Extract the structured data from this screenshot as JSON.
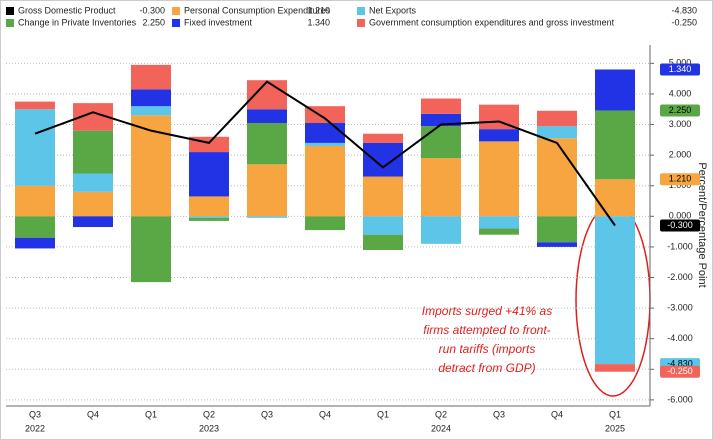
{
  "chart_data": {
    "type": "bar",
    "y_label": "Percent/Percentage Point",
    "categories": [
      "Q3",
      "Q4",
      "Q1",
      "Q2",
      "Q3",
      "Q4",
      "Q1",
      "Q2",
      "Q3",
      "Q4",
      "Q1"
    ],
    "years": [
      "2022",
      null,
      null,
      "2023",
      null,
      null,
      null,
      "2024",
      null,
      null,
      "2025"
    ],
    "series": [
      {
        "name": "Gross Domestic Product",
        "type": "line",
        "color": "#000000",
        "label_color": "#ffffff",
        "values": [
          2.7,
          3.4,
          2.8,
          2.4,
          4.4,
          3.2,
          1.6,
          3.0,
          3.1,
          2.4,
          -0.3
        ],
        "value_labels": [
          null,
          null,
          null,
          null,
          null,
          null,
          null,
          null,
          null,
          null,
          "-0.300"
        ]
      },
      {
        "name": "Personal Consumption Expenditures",
        "color": "#f7a541",
        "label_color": "#000000",
        "values": [
          1.0,
          0.8,
          3.3,
          0.65,
          1.7,
          2.3,
          1.3,
          1.9,
          2.45,
          2.55,
          1.21
        ],
        "value_labels": [
          null,
          null,
          null,
          null,
          null,
          null,
          null,
          null,
          null,
          null,
          "1.210"
        ]
      },
      {
        "name": "Net Exports",
        "color": "#5cc5e8",
        "label_color": "#000000",
        "values": [
          2.5,
          0.6,
          0.3,
          -0.05,
          -0.05,
          0.1,
          -0.6,
          -0.9,
          -0.4,
          0.4,
          -4.83
        ],
        "value_labels": [
          null,
          null,
          null,
          null,
          null,
          null,
          null,
          null,
          null,
          null,
          "-4.830"
        ]
      },
      {
        "name": "Change in Private Inventories",
        "color": "#5aa845",
        "label_color": "#000000",
        "values": [
          -0.7,
          1.4,
          -2.15,
          -0.1,
          1.35,
          -0.45,
          -0.5,
          1.05,
          -0.2,
          -0.85,
          2.25
        ],
        "value_labels": [
          null,
          null,
          null,
          null,
          null,
          null,
          null,
          null,
          null,
          null,
          "2.250"
        ]
      },
      {
        "name": "Fixed investment",
        "color": "#2233e6",
        "label_color": "#ffffff",
        "values": [
          -0.35,
          -0.35,
          0.55,
          1.45,
          0.45,
          0.65,
          1.1,
          0.4,
          0.4,
          -0.15,
          1.34
        ],
        "value_labels": [
          null,
          null,
          null,
          null,
          null,
          null,
          null,
          null,
          null,
          null,
          "1.340"
        ]
      },
      {
        "name": "Government consumption expenditures and gross investment",
        "color": "#f2645a",
        "label_color": "#ffffff",
        "values": [
          0.25,
          0.9,
          0.8,
          0.5,
          0.95,
          0.55,
          0.3,
          0.5,
          0.8,
          0.5,
          -0.25
        ],
        "value_labels": [
          null,
          null,
          null,
          null,
          null,
          null,
          null,
          null,
          null,
          null,
          "-0.250"
        ]
      }
    ],
    "ylim": [
      -6.2,
      5.6
    ],
    "yticks": [
      {
        "value": 5,
        "label": "5.000"
      },
      {
        "value": 4,
        "label": "4.000"
      },
      {
        "value": 3,
        "label": "3.000"
      },
      {
        "value": 2,
        "label": "2.000"
      },
      {
        "value": 1,
        "label": "1.000"
      },
      {
        "value": 0,
        "label": "0.000"
      },
      {
        "value": -1,
        "label": "-1.000"
      },
      {
        "value": -2,
        "label": "-2.000"
      },
      {
        "value": -3,
        "label": "-3.000"
      },
      {
        "value": -4,
        "label": "-4.000"
      },
      {
        "value": -5,
        "label": "-5.000"
      },
      {
        "value": -6,
        "label": "-6.000"
      }
    ],
    "grid": true,
    "annotation": {
      "lines": [
        "Imports surged +41% as",
        "firms attempted to front-",
        "run tariffs (imports",
        "detract from GDP)"
      ],
      "color": "#e0201b"
    }
  }
}
